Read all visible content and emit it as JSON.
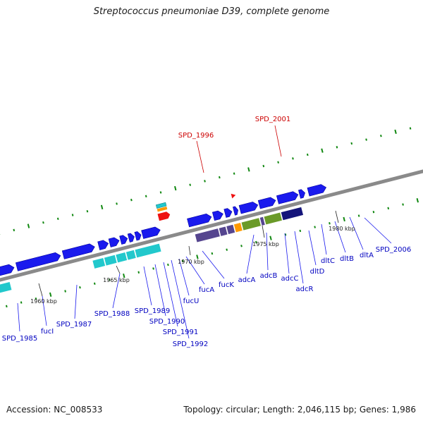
{
  "title": "Streptococcus pneumoniae D39, complete genome",
  "footer": {
    "accession": "Accession: NC_008533",
    "summary": "Topology: circular; Length: 2,046,115 bp; Genes: 1,986"
  },
  "ticks": [
    "1960 kbp",
    "1965 kbp",
    "1970 kbp",
    "1975 kbp",
    "1980 kbp"
  ],
  "gene_labels": [
    "SPD_1985",
    "fucI",
    "SPD_1987",
    "SPD_1988",
    "SPD_1989",
    "SPD_1990",
    "SPD_1991",
    "SPD_1992",
    "fucU",
    "fucA",
    "fucK",
    "adcA",
    "adcB",
    "adcC",
    "adcR",
    "dltD",
    "dltC",
    "dltB",
    "dltA",
    "SPD_2006"
  ],
  "highlight_labels": [
    "SPD_1996",
    "SPD_2001"
  ],
  "colors": {
    "backbone": "#8a8a8a",
    "gene": "#1a1aee",
    "cds_cyan": "#22c8cc",
    "cds_purple": "#55458f",
    "cds_orange": "#ff9900",
    "cds_green": "#6a9a28",
    "cds_navy": "#14147a",
    "label_blue": "#0000c0",
    "label_red": "#cc0000",
    "tick_green": "#118811",
    "highlight_red": "#ee1111"
  }
}
